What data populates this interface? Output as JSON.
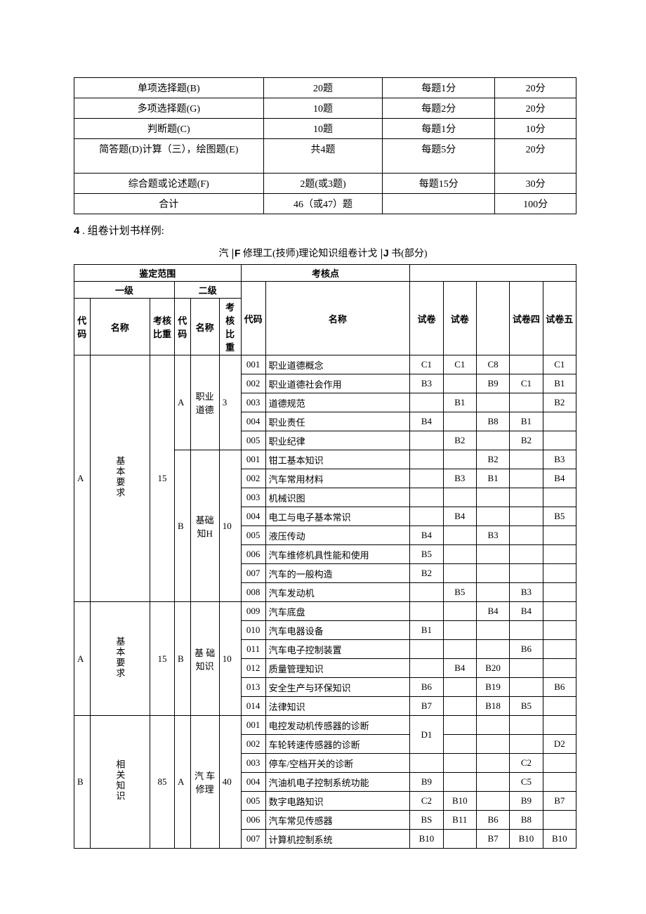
{
  "topTable": {
    "columns_width": [
      270,
      170,
      160,
      116
    ],
    "rows": [
      {
        "cells": [
          "单项选择题(B)",
          "20题",
          "每题1分",
          "20分"
        ],
        "tall": false
      },
      {
        "cells": [
          "多项选择题(G)",
          "10题",
          "每题2分",
          "20分"
        ],
        "tall": false
      },
      {
        "cells": [
          "判断题(C)",
          "10题",
          "每题1分",
          "10分"
        ],
        "tall": false
      },
      {
        "cells": [
          "简答题(D)计算（三），绘图题(E)",
          "共4题",
          "每题5分",
          "20分"
        ],
        "tall": true
      },
      {
        "cells": [
          "综合题或论述题(F)",
          "2题(或3题)",
          "每题15分",
          "30分"
        ],
        "tall": false
      },
      {
        "cells": [
          "合计",
          "46（或47）题",
          "",
          "100分"
        ],
        "tall": false
      }
    ]
  },
  "section4": {
    "num": "4",
    "text": " . 组卷计划书样例:"
  },
  "caption": {
    "pre": "汽",
    "bold1": "F",
    "mid": "修理工(技师)理论知识组卷计戈",
    "bold2": "J",
    "post": "书(部分)"
  },
  "mainTable": {
    "header": {
      "range": "鉴定范围",
      "point": "考核点",
      "l1": "一级",
      "l2": "二级",
      "code_s": "代码",
      "name_s": "名称",
      "weight": "考核比重",
      "code": "代码",
      "name": "名称",
      "p1": "试卷",
      "p2": "试卷",
      "p3": "",
      "p4": "试卷四",
      "p5": "试卷五"
    },
    "groups": [
      {
        "l1_code": "A",
        "l1_name": "基本要求",
        "l1_weight": "15",
        "l2_code": "A",
        "l2_name": "职业道德",
        "l2_weight": "3",
        "rows": [
          {
            "c": "001",
            "n": "职业道德概念",
            "p": [
              "C1",
              "C1",
              "C8",
              "",
              "C1"
            ]
          },
          {
            "c": "002",
            "n": "职业道德社会作用",
            "p": [
              "B3",
              "",
              "B9",
              "C1",
              "B1"
            ]
          },
          {
            "c": "003",
            "n": "道德规范",
            "p": [
              "",
              "B1",
              "",
              "",
              "B2"
            ]
          },
          {
            "c": "004",
            "n": "职业责任",
            "p": [
              "B4",
              "",
              "B8",
              "B1",
              ""
            ]
          },
          {
            "c": "005",
            "n": "职业纪律",
            "p": [
              "",
              "B2",
              "",
              "B2",
              ""
            ]
          }
        ]
      },
      {
        "l2_code": "B",
        "l2_name": "基础知H",
        "l2_weight": "10",
        "rows": [
          {
            "c": "001",
            "n": "钳工基本知识",
            "p": [
              "",
              "",
              "B2",
              "",
              "B3"
            ]
          },
          {
            "c": "002",
            "n": "汽车常用材料",
            "p": [
              "",
              "B3",
              "B1",
              "",
              "B4"
            ]
          },
          {
            "c": "003",
            "n": "机械识图",
            "p": [
              "",
              "",
              "",
              "",
              ""
            ]
          },
          {
            "c": "004",
            "n": "电工与电子基本常识",
            "p": [
              "",
              "B4",
              "",
              "",
              "B5"
            ]
          },
          {
            "c": "005",
            "n": "液压传动",
            "p": [
              "B4",
              "",
              "B3",
              "",
              ""
            ]
          },
          {
            "c": "006",
            "n": "汽车维修机具性能和使用",
            "p": [
              "B5",
              "",
              "",
              "",
              ""
            ]
          },
          {
            "c": "007",
            "n": "汽车的一般构造",
            "p": [
              "B2",
              "",
              "",
              "",
              ""
            ]
          },
          {
            "c": "008",
            "n": "汽车发动机",
            "p": [
              "",
              "B5",
              "",
              "B3",
              ""
            ]
          }
        ]
      },
      {
        "l1_code": "A",
        "l1_name": "基本要求",
        "l1_weight": "15",
        "l2_code": "B",
        "l2_name": "基 础知识",
        "l2_weight": "10",
        "rows": [
          {
            "c": "009",
            "n": "汽车底盘",
            "p": [
              "",
              "",
              "B4",
              "B4",
              ""
            ]
          },
          {
            "c": "010",
            "n": "汽车电器设备",
            "p": [
              "B1",
              "",
              "",
              "",
              ""
            ]
          },
          {
            "c": "011",
            "n": "汽车电子控制装置",
            "p": [
              "",
              "",
              "",
              "B6",
              ""
            ]
          },
          {
            "c": "012",
            "n": "质量管理知识",
            "p": [
              "",
              "B4",
              "B20",
              "",
              ""
            ]
          },
          {
            "c": "013",
            "n": "安全生产与环保知识",
            "p": [
              "B6",
              "",
              "B19",
              "",
              "B6"
            ]
          },
          {
            "c": "014",
            "n": "法律知识",
            "p": [
              "B7",
              "",
              "B18",
              "B5",
              ""
            ]
          }
        ]
      },
      {
        "l1_code": "B",
        "l1_name": "相关知识",
        "l1_weight": "85",
        "l2_code": "A",
        "l2_name": "汽 车修理",
        "l2_weight": "40",
        "rows": [
          {
            "c": "001",
            "n": "电控发动机传感器的诊断",
            "p": [
              "D1_span",
              "",
              "",
              "",
              ""
            ]
          },
          {
            "c": "002",
            "n": "车轮转速传感器的诊断",
            "p": [
              "",
              "",
              "",
              "",
              "D2"
            ]
          },
          {
            "c": "003",
            "n": "停车/空档开关的诊断",
            "p": [
              "",
              "",
              "",
              "C2",
              ""
            ]
          },
          {
            "c": "004",
            "n": "汽油机电子控制系统功能",
            "p": [
              "B9",
              "",
              "",
              "C5",
              ""
            ]
          },
          {
            "c": "005",
            "n": "数字电路知识",
            "p": [
              "C2",
              "B10",
              "",
              "B9",
              "B7"
            ]
          },
          {
            "c": "006",
            "n": "汽车常见传感器",
            "p": [
              "BS",
              "B11",
              "B6",
              "B8",
              ""
            ]
          },
          {
            "c": "007",
            "n": "计算机控制系统",
            "p": [
              "B10",
              "",
              "B7",
              "B10",
              "B10"
            ]
          }
        ]
      }
    ]
  }
}
